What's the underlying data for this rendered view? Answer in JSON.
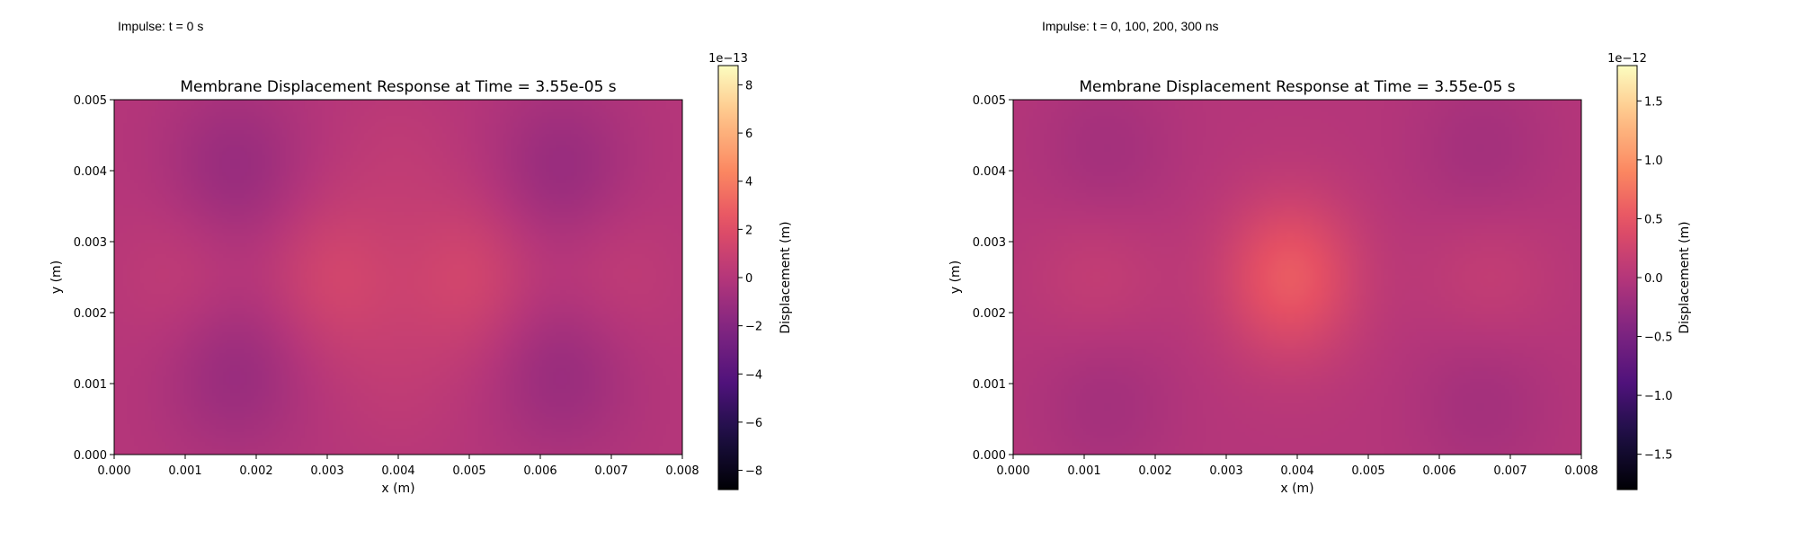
{
  "chart_data": [
    {
      "type": "heatmap",
      "caption": "Impulse: t = 0 s",
      "title": "Membrane Displacement Response at Time = 3.55e-05 s",
      "xlabel": "x (m)",
      "ylabel": "y (m)",
      "xlim": [
        0.0,
        0.008
      ],
      "ylim": [
        0.0,
        0.005
      ],
      "xticks": [
        "0.000",
        "0.001",
        "0.002",
        "0.003",
        "0.004",
        "0.005",
        "0.006",
        "0.007",
        "0.008"
      ],
      "yticks": [
        "0.000",
        "0.001",
        "0.002",
        "0.003",
        "0.004",
        "0.005"
      ],
      "colormap": "magma",
      "colorbar": {
        "label": "Displacement (m)",
        "offset_text": "1e−13",
        "scale": 1e-13,
        "vmin": -8.8,
        "vmax": 8.8,
        "ticks": [
          -8,
          -6,
          -4,
          -2,
          0,
          2,
          4,
          6,
          8
        ],
        "tick_labels": [
          "−8",
          "−6",
          "−4",
          "−2",
          "0",
          "2",
          "4",
          "6",
          "8"
        ]
      },
      "field": {
        "base": 0.0,
        "features": [
          {
            "x": 0.0031,
            "y": 0.0025,
            "amplitude": 1.3
          },
          {
            "x": 0.005,
            "y": 0.0025,
            "amplitude": 1.3
          },
          {
            "x": 0.001,
            "y": 0.0025,
            "amplitude": 0.6
          },
          {
            "x": 0.007,
            "y": 0.0025,
            "amplitude": 0.6
          },
          {
            "x": 0.0017,
            "y": 0.004,
            "amplitude": -1.2
          },
          {
            "x": 0.0017,
            "y": 0.0012,
            "amplitude": -1.2
          },
          {
            "x": 0.0063,
            "y": 0.004,
            "amplitude": -1.2
          },
          {
            "x": 0.0063,
            "y": 0.0012,
            "amplitude": -1.2
          },
          {
            "x": 0.004,
            "y": 0.0042,
            "amplitude": 0.4
          },
          {
            "x": 0.004,
            "y": 0.001,
            "amplitude": 0.4
          }
        ]
      }
    },
    {
      "type": "heatmap",
      "caption": "Impulse: t = 0, 100, 200, 300 ns",
      "title": "Membrane Displacement Response at Time = 3.55e-05 s",
      "xlabel": "x (m)",
      "ylabel": "y (m)",
      "xlim": [
        0.0,
        0.008
      ],
      "ylim": [
        0.0,
        0.005
      ],
      "xticks": [
        "0.000",
        "0.001",
        "0.002",
        "0.003",
        "0.004",
        "0.005",
        "0.006",
        "0.007",
        "0.008"
      ],
      "yticks": [
        "0.000",
        "0.001",
        "0.002",
        "0.003",
        "0.004",
        "0.005"
      ],
      "colormap": "magma",
      "colorbar": {
        "label": "Displacement (m)",
        "offset_text": "1e−12",
        "scale": 1e-12,
        "vmin": -1.8,
        "vmax": 1.8,
        "ticks": [
          -1.5,
          -1.0,
          -0.5,
          0.0,
          0.5,
          1.0,
          1.5
        ],
        "tick_labels": [
          "−1.5",
          "−1.0",
          "−0.5",
          "0.0",
          "0.5",
          "1.0",
          "1.5"
        ]
      },
      "field": {
        "base": 0.0,
        "features": [
          {
            "x": 0.0039,
            "y": 0.0025,
            "amplitude": 0.55
          },
          {
            "x": 0.0012,
            "y": 0.0025,
            "amplitude": 0.15
          },
          {
            "x": 0.0067,
            "y": 0.0025,
            "amplitude": 0.15
          },
          {
            "x": 0.0013,
            "y": 0.0042,
            "amplitude": -0.15
          },
          {
            "x": 0.0013,
            "y": 0.0008,
            "amplitude": -0.15
          },
          {
            "x": 0.0066,
            "y": 0.0042,
            "amplitude": -0.15
          },
          {
            "x": 0.0066,
            "y": 0.0008,
            "amplitude": -0.15
          }
        ]
      }
    }
  ]
}
